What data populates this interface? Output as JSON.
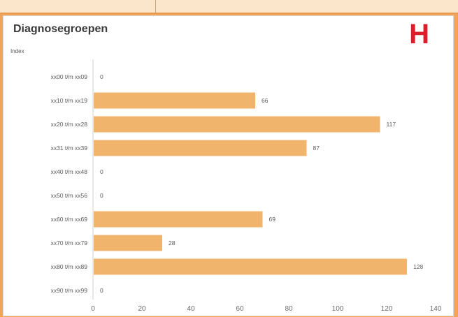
{
  "letter": "H",
  "chart_data": {
    "type": "bar",
    "orientation": "horizontal",
    "title": "Diagnosegroepen",
    "ylabel": "Index",
    "xlabel": "",
    "categories": [
      "xx00 t/m xx09",
      "xx10 t/m xx19",
      "xx20 t/m xx28",
      "xx31 t/m xx39",
      "xx40 t/m xx48",
      "xx50 t/m xx56",
      "xx60 t/m xx69",
      "xx70 t/m xx79",
      "xx80 t/m xx89",
      "xx90 t/m xx99"
    ],
    "values": [
      0,
      66,
      117,
      87,
      0,
      0,
      69,
      28,
      128,
      0
    ],
    "xlim": [
      0,
      140
    ],
    "xticks": [
      0,
      20,
      40,
      60,
      80,
      100,
      120,
      140
    ],
    "bar_color": "#f0b46c",
    "grid": false,
    "legend": "none"
  }
}
